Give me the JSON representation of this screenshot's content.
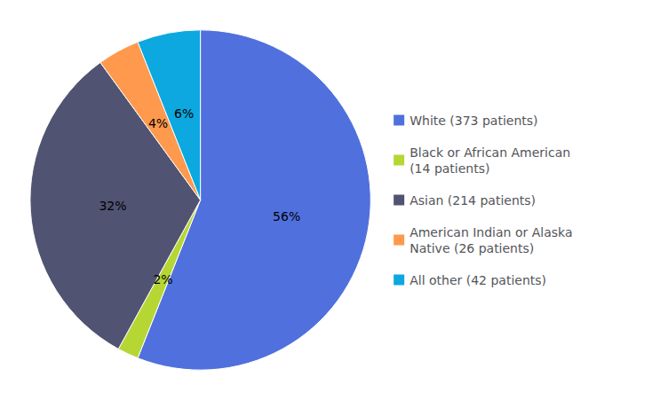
{
  "chart_data": {
    "type": "pie",
    "categories": [
      "White (373 patients)",
      "Black or African American\n(14 patients)",
      "Asian (214 patients)",
      "American Indian or Alaska\nNative (26 patients)",
      "All other (42 patients)"
    ],
    "values": [
      56,
      2,
      32,
      4,
      6
    ],
    "value_labels": [
      "56%",
      "2%",
      "32%",
      "4%",
      "6%"
    ],
    "data_labels": true,
    "legend": "right"
  }
}
